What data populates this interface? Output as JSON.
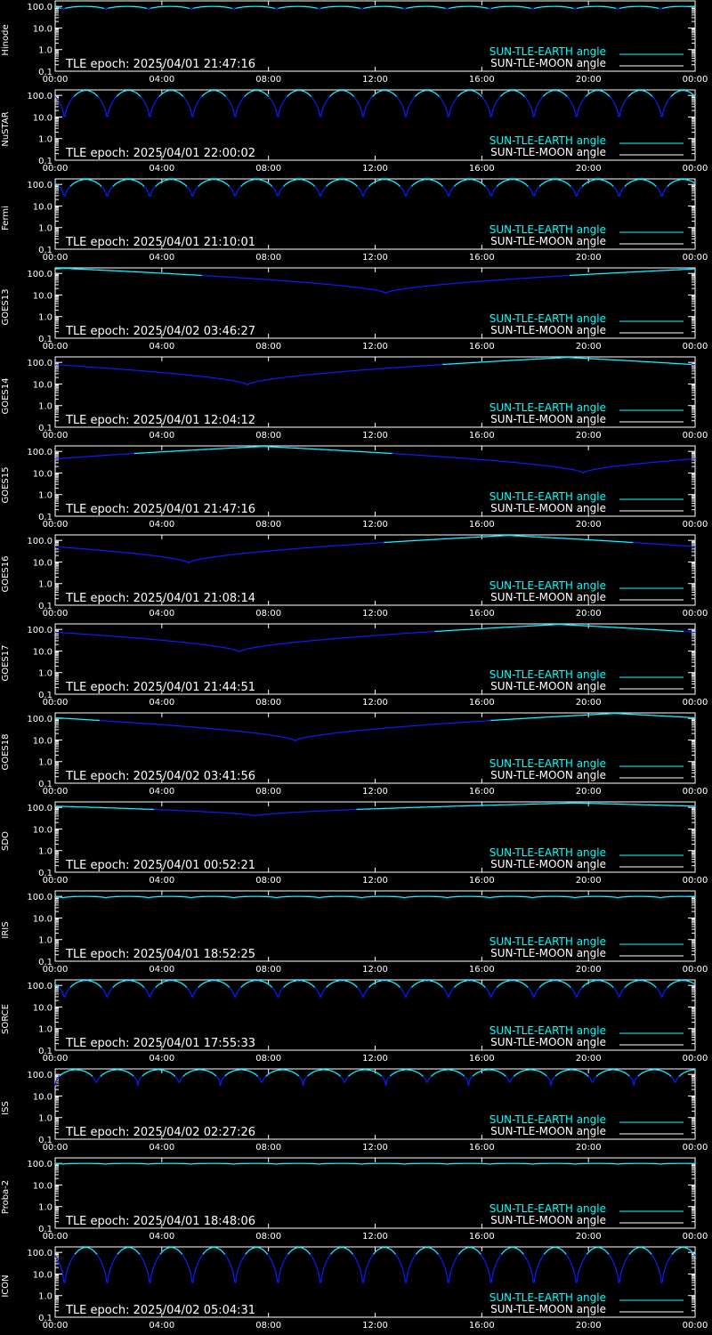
{
  "colors": {
    "earth": "#00ffff",
    "moon": "#ffffff",
    "deep": "#0a1eff",
    "axis": "#ffffff",
    "background": "#000000"
  },
  "x_ticks": [
    "00:00",
    "04:00",
    "08:00",
    "12:00",
    "16:00",
    "20:00",
    "00:00"
  ],
  "y_ticks": [
    "100.0",
    "10.0",
    "1.0",
    "0.1"
  ],
  "legend": {
    "earth": "SUN-TLE-EARTH angle",
    "moon": "SUN-TLE-MOON angle"
  },
  "chart_data": [
    {
      "type": "line",
      "name": "Hinode",
      "epoch": "TLE epoch: 2025/04/01 21:47:16",
      "y_scale": "log",
      "ylim": [
        0.1,
        180
      ],
      "xlim": [
        0,
        24
      ],
      "curve": {
        "kind": "periodic",
        "period_h": 1.6,
        "min": 70,
        "max": 100,
        "phase_h": 0.3
      }
    },
    {
      "type": "line",
      "name": "NuSTAR",
      "epoch": "TLE epoch: 2025/04/01 22:00:02",
      "y_scale": "log",
      "ylim": [
        0.1,
        180
      ],
      "xlim": [
        0,
        24
      ],
      "curve": {
        "kind": "periodic",
        "period_h": 1.6,
        "min": 5,
        "max": 170,
        "phase_h": 0.35
      }
    },
    {
      "type": "line",
      "name": "Fermi",
      "epoch": "TLE epoch: 2025/04/01 21:10:01",
      "y_scale": "log",
      "ylim": [
        0.1,
        180
      ],
      "xlim": [
        0,
        24
      ],
      "curve": {
        "kind": "periodic",
        "period_h": 1.6,
        "min": 18,
        "max": 170,
        "phase_h": 0.35
      }
    },
    {
      "type": "line",
      "name": "GOES13",
      "epoch": "TLE epoch: 2025/04/02 03:46:27",
      "y_scale": "log",
      "ylim": [
        0.1,
        180
      ],
      "xlim": [
        0,
        24
      ],
      "curve": {
        "kind": "v",
        "center_h": 12.4,
        "min": 12,
        "max": 170
      }
    },
    {
      "type": "line",
      "name": "GOES14",
      "epoch": "TLE epoch: 2025/04/01 12:04:12",
      "y_scale": "log",
      "ylim": [
        0.1,
        180
      ],
      "xlim": [
        0,
        24
      ],
      "curve": {
        "kind": "v",
        "center_h": 7.2,
        "min": 9,
        "max": 170
      }
    },
    {
      "type": "line",
      "name": "GOES15",
      "epoch": "TLE epoch: 2025/04/01 21:47:16",
      "y_scale": "log",
      "ylim": [
        0.1,
        180
      ],
      "xlim": [
        0,
        24
      ],
      "curve": {
        "kind": "v",
        "center_h": 19.8,
        "min": 10,
        "max": 170
      }
    },
    {
      "type": "line",
      "name": "GOES16",
      "epoch": "TLE epoch: 2025/04/01 21:08:14",
      "y_scale": "log",
      "ylim": [
        0.1,
        180
      ],
      "xlim": [
        0,
        24
      ],
      "curve": {
        "kind": "v",
        "center_h": 5.0,
        "min": 9,
        "max": 170
      }
    },
    {
      "type": "line",
      "name": "GOES17",
      "epoch": "TLE epoch: 2025/04/01 21:44:51",
      "y_scale": "log",
      "ylim": [
        0.1,
        180
      ],
      "xlim": [
        0,
        24
      ],
      "curve": {
        "kind": "v",
        "center_h": 6.9,
        "min": 9,
        "max": 170
      }
    },
    {
      "type": "line",
      "name": "GOES18",
      "epoch": "TLE epoch: 2025/04/02 03:41:56",
      "y_scale": "log",
      "ylim": [
        0.1,
        180
      ],
      "xlim": [
        0,
        24
      ],
      "curve": {
        "kind": "v",
        "center_h": 9.0,
        "min": 9,
        "max": 170
      }
    },
    {
      "type": "line",
      "name": "SDO",
      "epoch": "TLE epoch: 2025/04/01 00:52:21",
      "y_scale": "log",
      "ylim": [
        0.1,
        180
      ],
      "xlim": [
        0,
        24
      ],
      "curve": {
        "kind": "v",
        "center_h": 7.5,
        "min": 40,
        "max": 160
      }
    },
    {
      "type": "line",
      "name": "IRIS",
      "epoch": "TLE epoch: 2025/04/01 18:52:25",
      "y_scale": "log",
      "ylim": [
        0.1,
        180
      ],
      "xlim": [
        0,
        24
      ],
      "curve": {
        "kind": "periodic",
        "period_h": 1.6,
        "min": 85,
        "max": 100,
        "phase_h": 0.3
      }
    },
    {
      "type": "line",
      "name": "SORCE",
      "epoch": "TLE epoch: 2025/04/01 17:55:33",
      "y_scale": "log",
      "ylim": [
        0.1,
        180
      ],
      "xlim": [
        0,
        24
      ],
      "curve": {
        "kind": "periodic",
        "period_h": 1.6,
        "min": 18,
        "max": 170,
        "phase_h": 0.35
      }
    },
    {
      "type": "line",
      "name": "ISS",
      "epoch": "TLE epoch: 2025/04/02 02:27:26",
      "y_scale": "log",
      "ylim": [
        0.1,
        180
      ],
      "xlim": [
        0,
        24
      ],
      "curve": {
        "kind": "periodic",
        "period_h": 1.55,
        "min": 30,
        "max": 165,
        "phase_h": 0.0
      }
    },
    {
      "type": "line",
      "name": "Proba-2",
      "epoch": "TLE epoch: 2025/04/01 18:48:06",
      "y_scale": "log",
      "ylim": [
        0.1,
        180
      ],
      "xlim": [
        0,
        24
      ],
      "curve": {
        "kind": "periodic",
        "period_h": 1.6,
        "min": 92,
        "max": 100,
        "phase_h": 0.3
      }
    },
    {
      "type": "line",
      "name": "ICON",
      "epoch": "TLE epoch: 2025/04/02 05:04:31",
      "y_scale": "log",
      "ylim": [
        0.1,
        180
      ],
      "xlim": [
        0,
        24
      ],
      "curve": {
        "kind": "periodic",
        "period_h": 1.6,
        "min": 1.5,
        "max": 170,
        "phase_h": 0.35
      }
    }
  ]
}
